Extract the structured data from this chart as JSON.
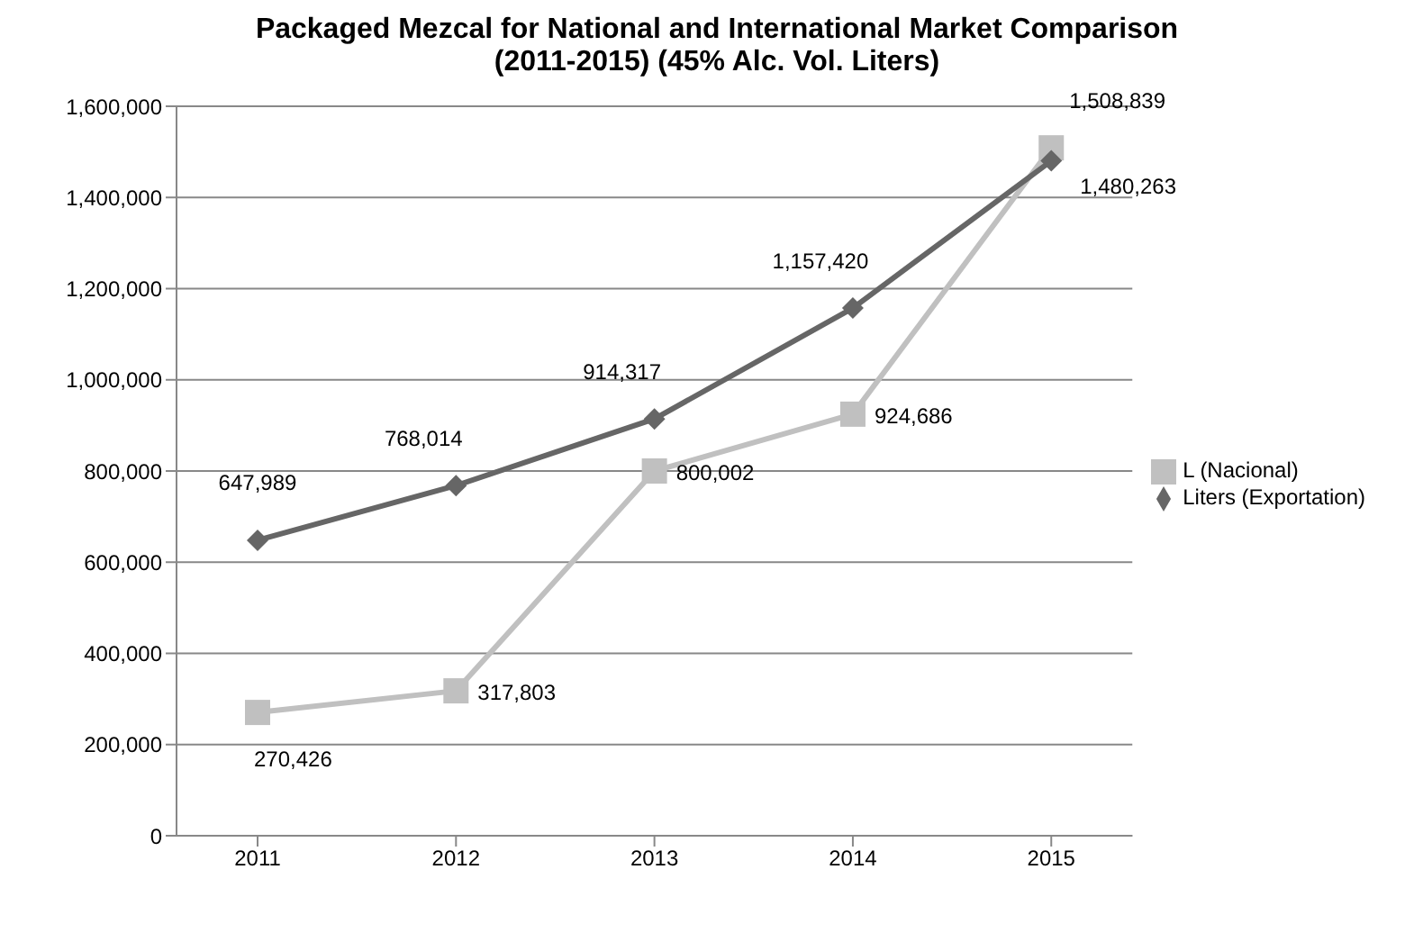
{
  "chart_data": {
    "type": "line",
    "title": "Packaged Mezcal for National and International Market Comparison (2011-2015) (45%  Alc. Vol. Liters)",
    "categories": [
      "2011",
      "2012",
      "2013",
      "2014",
      "2015"
    ],
    "series": [
      {
        "name": "L (Nacional)",
        "color": "#c0c0c0",
        "marker": "square",
        "values": [
          270426,
          317803,
          800002,
          924686,
          1508839
        ],
        "value_labels": [
          "270,426",
          "317,803",
          "800,002",
          "924,686",
          "1,508,839"
        ]
      },
      {
        "name": "Liters (Exportation)",
        "color": "#666666",
        "marker": "diamond",
        "values": [
          647989,
          768014,
          914317,
          1157420,
          1480263
        ],
        "value_labels": [
          "647,989",
          "768,014",
          "914,317",
          "1,157,420",
          "1,480,263"
        ]
      }
    ],
    "ylim": [
      0,
      1600000
    ],
    "yticks": [
      0,
      {
        "value": 200000,
        "label": "200,000"
      },
      {
        "value": 400000,
        "label": "400,000"
      },
      {
        "value": 600000,
        "label": "600,000"
      },
      {
        "value": 800000,
        "label": "800,000"
      },
      {
        "value": 1000000,
        "label": "1,000,000"
      },
      {
        "value": 1200000,
        "label": "1,200,000"
      },
      {
        "value": 1400000,
        "label": "1,400,000"
      },
      {
        "value": 1600000,
        "label": "1,600,000"
      }
    ],
    "grid": "y",
    "legend": "right",
    "line_style": "solid"
  }
}
